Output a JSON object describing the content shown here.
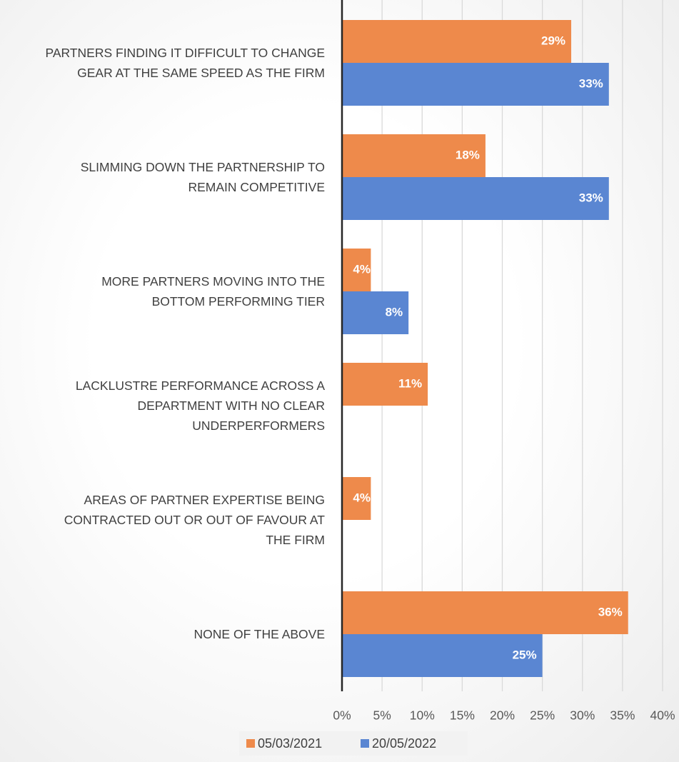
{
  "chart_data": {
    "type": "barh",
    "categories": [
      "PARTNERS FINDING IT DIFFICULT TO CHANGE\nGEAR AT THE SAME SPEED AS THE FIRM",
      "SLIMMING DOWN THE PARTNERSHIP TO\nREMAIN COMPETITIVE",
      "MORE PARTNERS MOVING INTO THE\nBOTTOM PERFORMING TIER",
      "LACKLUSTRE PERFORMANCE ACROSS A\nDEPARTMENT WITH NO CLEAR\nUNDERPERFORMERS",
      "AREAS OF PARTNER EXPERTISE BEING\nCONTRACTED OUT OR OUT OF FAVOUR AT\nTHE FIRM",
      "NONE OF THE ABOVE"
    ],
    "series": [
      {
        "name": "05/03/2021",
        "color": "#EE8A4B",
        "values": [
          28.6,
          17.9,
          3.6,
          10.7,
          3.6,
          35.7
        ],
        "value_labels": [
          "29%",
          "18%",
          "4%",
          "11%",
          "4%",
          "36%"
        ]
      },
      {
        "name": "20/05/2022",
        "color": "#5A86D2",
        "values": [
          33.3,
          33.3,
          8.3,
          0,
          0,
          25
        ],
        "value_labels": [
          "33%",
          "33%",
          "8%",
          "0%",
          "0%",
          "25%"
        ]
      }
    ],
    "xlim": [
      0,
      40
    ],
    "xticks": [
      {
        "value": 0,
        "label": "0%"
      },
      {
        "value": 5,
        "label": "5%"
      },
      {
        "value": 10,
        "label": "10%"
      },
      {
        "value": 15,
        "label": "15%"
      },
      {
        "value": 20,
        "label": "20%"
      },
      {
        "value": 25,
        "label": "25%"
      },
      {
        "value": 30,
        "label": "30%"
      },
      {
        "value": 35,
        "label": "35%"
      },
      {
        "value": 40,
        "label": "40%"
      }
    ],
    "grid": true,
    "legend": "bottom"
  }
}
